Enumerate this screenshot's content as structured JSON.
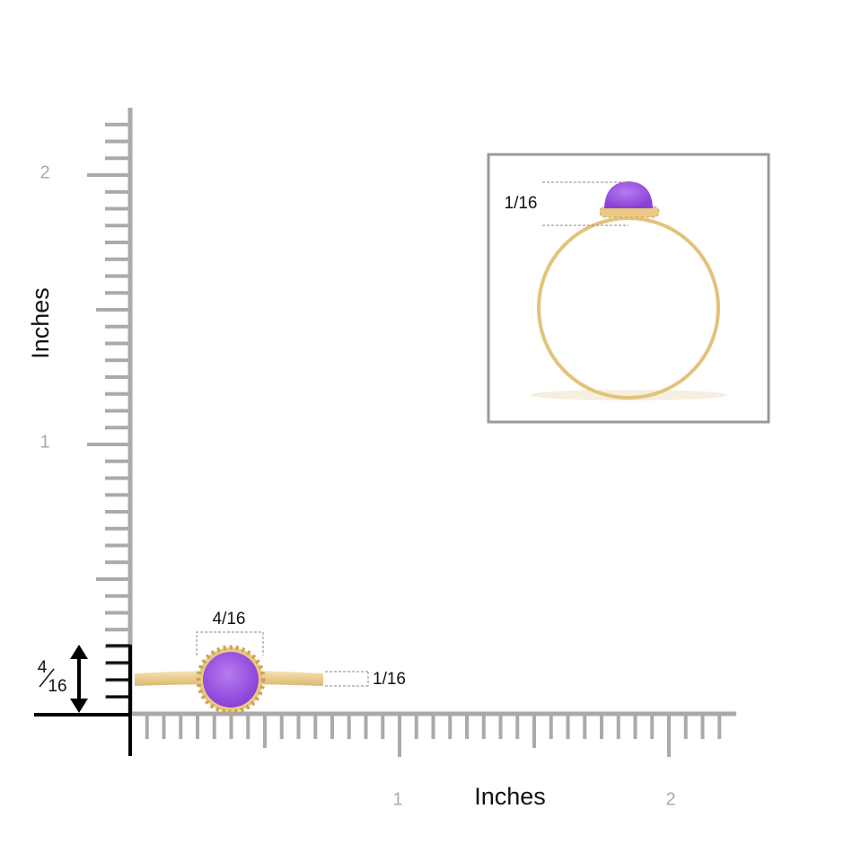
{
  "y_axis": {
    "title": "Inches",
    "labels": [
      "1",
      "2"
    ]
  },
  "x_axis": {
    "title": "Inches",
    "labels": [
      "1",
      "2"
    ]
  },
  "annotations": {
    "stone_width": "4/16",
    "band_width": "1/16",
    "side_height": {
      "numerator": "4",
      "denominator": "16"
    },
    "inset_band_height": "1/16"
  }
}
